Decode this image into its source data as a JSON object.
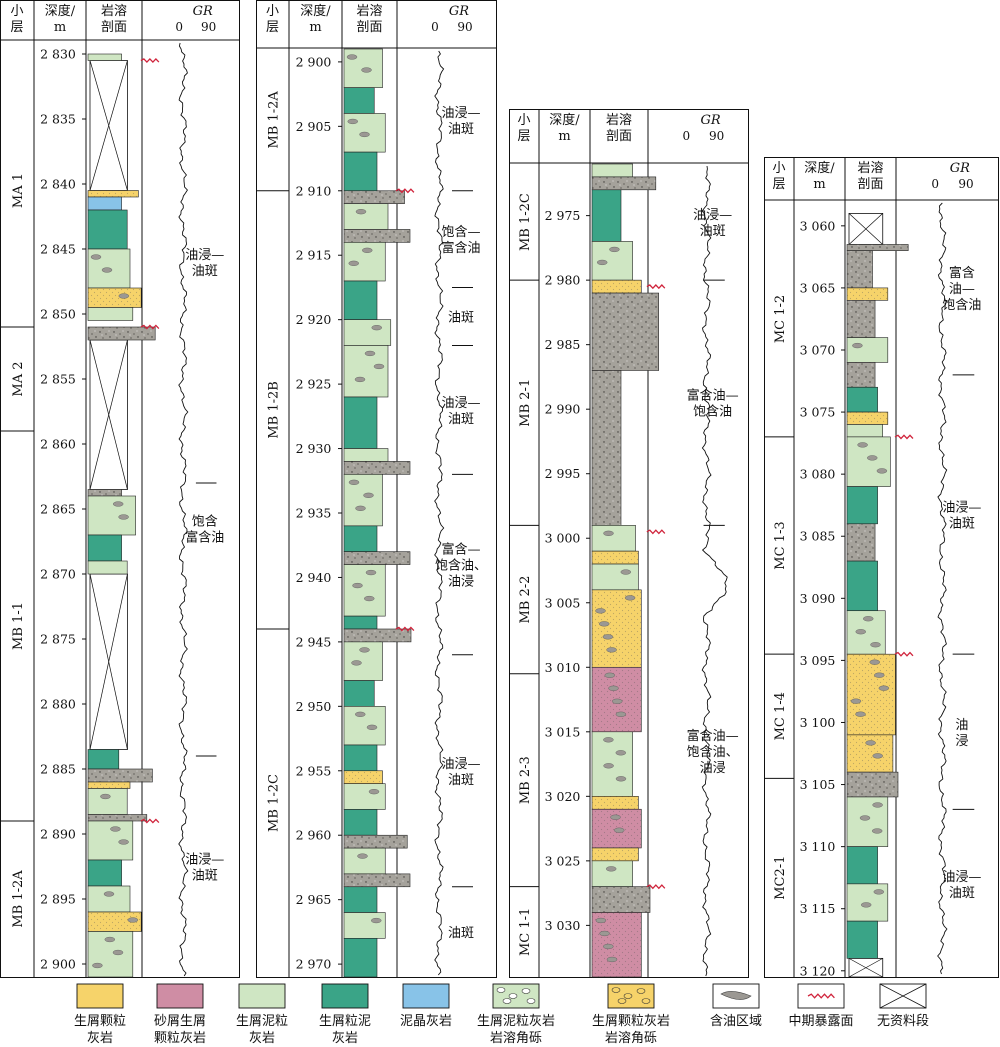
{
  "headers": {
    "layer": "小层",
    "depth_line1": "深度/",
    "depth_line2": "m",
    "profile_line1": "岩溶",
    "profile_line2": "剖面",
    "gr": "GR",
    "gr_min": "0",
    "gr_max": "90"
  },
  "colors": {
    "bioclastic_grainstone": "#f6d36a",
    "sandy_bioclastic_grainstone": "#cf8da4",
    "bioclastic_micrite": "#cfe6c3",
    "bioclastic_grain_micrite": "#3aa487",
    "sparry_micrite": "#88c3e8",
    "karst_breccia_fill": "#a5a29b",
    "oil_region": "#9b9893",
    "exposure_mark": "#d0243c"
  },
  "columns": [
    {
      "depth_top": 2829,
      "depth_bottom": 2901,
      "ticks": [
        "2 830",
        "2 835",
        "2 840",
        "2 845",
        "2 850",
        "2 855",
        "2 860",
        "2 865",
        "2 870",
        "2 875",
        "2 880",
        "2 885",
        "2 890",
        "2 895",
        "2 900"
      ],
      "tick_values": [
        2830,
        2835,
        2840,
        2845,
        2850,
        2855,
        2860,
        2865,
        2870,
        2875,
        2880,
        2885,
        2890,
        2895,
        2900
      ],
      "layers": [
        {
          "name": "MA 1",
          "top": 2830,
          "bottom": 2851
        },
        {
          "name": "MA 2",
          "top": 2851,
          "bottom": 2859
        },
        {
          "name": "MB 1-1",
          "top": 2859,
          "bottom": 2889
        },
        {
          "name": "MB 1-2A",
          "top": 2889,
          "bottom": 2901
        }
      ],
      "nodata": [
        [
          2830.5,
          2840.5
        ],
        [
          2852,
          2863.5
        ],
        [
          2870,
          2883.5
        ]
      ],
      "oil": [
        {
          "lines": [
            "油浸—",
            "油斑"
          ],
          "top": 2840,
          "bottom": 2852
        },
        {
          "lines": [
            "饱含",
            "富含油"
          ],
          "top": 2863,
          "bottom": 2870
        },
        {
          "lines": [
            "油浸—",
            "油斑"
          ],
          "top": 2884,
          "bottom": 2901
        }
      ],
      "exposures": [
        2830.5,
        2851,
        2889
      ]
    },
    {
      "depth_top": 2899,
      "depth_bottom": 2971,
      "ticks": [
        "2 900",
        "2 905",
        "2 910",
        "2 915",
        "2 920",
        "2 925",
        "2 930",
        "2 935",
        "2 940",
        "2 945",
        "2 950",
        "2 955",
        "2 960",
        "2 965",
        "2 970"
      ],
      "tick_values": [
        2900,
        2905,
        2910,
        2915,
        2920,
        2925,
        2930,
        2935,
        2940,
        2945,
        2950,
        2955,
        2960,
        2965,
        2970
      ],
      "layers": [
        {
          "name": "MB 1-2A",
          "top": 2899,
          "bottom": 2910
        },
        {
          "name": "MB 1-2B",
          "top": 2910,
          "bottom": 2944
        },
        {
          "name": "MB 1-2C",
          "top": 2944,
          "bottom": 2971
        }
      ],
      "nodata": [],
      "oil": [
        {
          "lines": [
            "油浸—",
            "油斑"
          ],
          "top": 2899,
          "bottom": 2910
        },
        {
          "lines": [
            "饱含—",
            "富含油"
          ],
          "top": 2910,
          "bottom": 2917.5
        },
        {
          "lines": [
            "油斑"
          ],
          "top": 2917.5,
          "bottom": 2922
        },
        {
          "lines": [
            "油浸—",
            "油斑"
          ],
          "top": 2922,
          "bottom": 2932
        },
        {
          "lines": [
            "富含—",
            "饱含油、",
            "油浸"
          ],
          "top": 2932,
          "bottom": 2946
        },
        {
          "lines": [
            "油浸—",
            "油斑"
          ],
          "top": 2946,
          "bottom": 2964
        },
        {
          "lines": [
            "油斑"
          ],
          "top": 2964,
          "bottom": 2971
        }
      ],
      "exposures": [
        2910,
        2944
      ]
    },
    {
      "depth_top": 2971,
      "depth_bottom": 3034,
      "ticks": [
        "2 975",
        "2 980",
        "2 985",
        "2 990",
        "2 995",
        "3 000",
        "3 005",
        "3 010",
        "3 015",
        "3 020",
        "3 025",
        "3 030"
      ],
      "tick_values": [
        2975,
        2980,
        2985,
        2990,
        2995,
        3000,
        3005,
        3010,
        3015,
        3020,
        3025,
        3030
      ],
      "layers": [
        {
          "name": "MB 1-2C",
          "top": 2971,
          "bottom": 2980
        },
        {
          "name": "MB 2-1",
          "top": 2980,
          "bottom": 2999
        },
        {
          "name": "MB 2-2",
          "top": 2999,
          "bottom": 3010.5
        },
        {
          "name": "MB 2-3",
          "top": 3010.5,
          "bottom": 3027
        },
        {
          "name": "MC 1-1",
          "top": 3027,
          "bottom": 3034
        }
      ],
      "nodata": [],
      "oil": [
        {
          "lines": [
            "油浸—",
            "油斑"
          ],
          "top": 2971,
          "bottom": 2980
        },
        {
          "lines": [
            "富含油—",
            "饱含油"
          ],
          "top": 2980,
          "bottom": 2999
        },
        {
          "lines": [
            "富含油—",
            "饱含油、",
            "油浸"
          ],
          "top": 2999,
          "bottom": 3034
        }
      ],
      "exposures": [
        2980.5,
        2999.5,
        3027
      ]
    },
    {
      "depth_top": 3058,
      "depth_bottom": 3120.5,
      "ticks": [
        "3 060",
        "3 065",
        "3 070",
        "3 075",
        "3 080",
        "3 085",
        "3 090",
        "3 095",
        "3 100",
        "3 105",
        "3 110",
        "3 115",
        "3 120"
      ],
      "tick_values": [
        3060,
        3065,
        3070,
        3075,
        3080,
        3085,
        3090,
        3095,
        3100,
        3105,
        3110,
        3115,
        3120
      ],
      "layers": [
        {
          "name": "MC 1-2",
          "top": 3058,
          "bottom": 3077
        },
        {
          "name": "MC 1-3",
          "top": 3077,
          "bottom": 3094.5
        },
        {
          "name": "MC 1-4",
          "top": 3094.5,
          "bottom": 3104.5
        },
        {
          "name": "MC2-1",
          "top": 3104.5,
          "bottom": 3120.5
        }
      ],
      "nodata": [
        [
          3059,
          3061.5
        ],
        [
          3119,
          3120.5
        ]
      ],
      "oil": [
        {
          "lines": [
            "富含",
            "油—",
            "饱含油"
          ],
          "top": 3058,
          "bottom": 3072
        },
        {
          "lines": [
            "油浸—",
            "油斑"
          ],
          "top": 3072,
          "bottom": 3094.5
        },
        {
          "lines": [
            "油",
            "浸"
          ],
          "top": 3094.5,
          "bottom": 3107
        },
        {
          "lines": [
            "油浸—",
            "油斑"
          ],
          "top": 3107,
          "bottom": 3119
        }
      ],
      "exposures": [
        3077,
        3094.5
      ]
    }
  ],
  "legend": [
    {
      "key": "bioclastic_grainstone",
      "lines": [
        "生屑颗粒",
        "灰岩"
      ]
    },
    {
      "key": "sandy_bioclastic_grainstone",
      "lines": [
        "砂屑生屑",
        "颗粒灰岩"
      ]
    },
    {
      "key": "bioclastic_micrite",
      "lines": [
        "生屑泥粒",
        "灰岩"
      ]
    },
    {
      "key": "bioclastic_grain_micrite",
      "lines": [
        "生屑粒泥",
        "灰岩"
      ]
    },
    {
      "key": "sparry_micrite",
      "lines": [
        "泥晶灰岩"
      ]
    },
    {
      "key": "micrite_breccia",
      "lines": [
        "生屑泥粒灰岩",
        "岩溶角砾"
      ]
    },
    {
      "key": "grain_breccia",
      "lines": [
        "生屑颗粒灰岩",
        "岩溶角砾"
      ]
    },
    {
      "key": "oil_region",
      "lines": [
        "含油区域"
      ]
    },
    {
      "key": "exposure",
      "lines": [
        "中期暴露面"
      ]
    },
    {
      "key": "nodata",
      "lines": [
        "无资料段"
      ]
    }
  ]
}
